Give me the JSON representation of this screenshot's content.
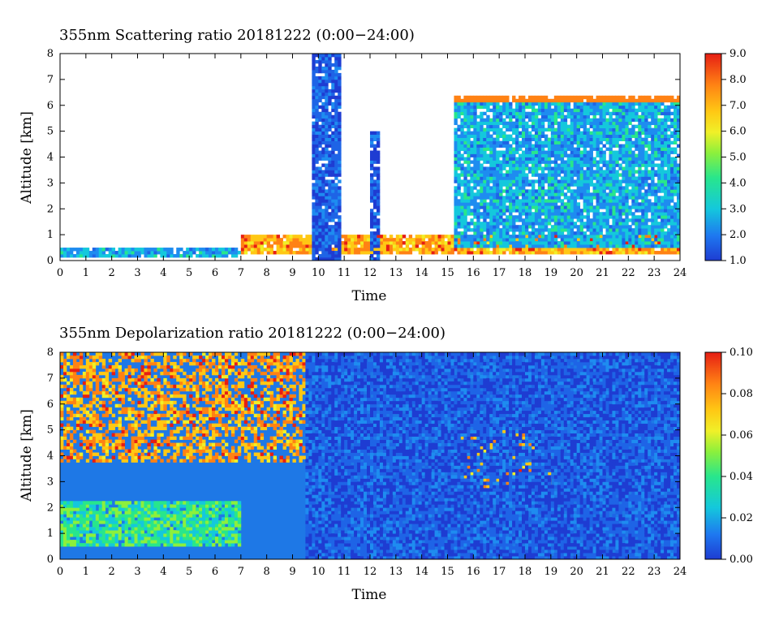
{
  "chart_data": [
    {
      "type": "heatmap",
      "title": "355nm Scattering ratio  20181222 (0:00−24:00)",
      "xlabel": "Time",
      "ylabel": "Altitude [km]",
      "xlim": [
        0,
        24
      ],
      "ylim": [
        0,
        8
      ],
      "x_ticks": [
        "0",
        "1",
        "2",
        "3",
        "4",
        "5",
        "6",
        "7",
        "8",
        "9",
        "10",
        "11",
        "12",
        "13",
        "14",
        "15",
        "16",
        "17",
        "18",
        "19",
        "20",
        "21",
        "22",
        "23",
        "24"
      ],
      "y_ticks": [
        "0",
        "1",
        "2",
        "3",
        "4",
        "5",
        "6",
        "7",
        "8"
      ],
      "colorbar": {
        "min": 1.0,
        "max": 9.0,
        "ticks": [
          "1.0",
          "2.0",
          "3.0",
          "4.0",
          "5.0",
          "6.0",
          "7.0",
          "8.0",
          "9.0"
        ]
      },
      "features": [
        {
          "x": [
            0,
            7
          ],
          "y": [
            0.2,
            0.5
          ],
          "level": "low-mid, boundary layer traces"
        },
        {
          "x": [
            7,
            24
          ],
          "y": [
            0.3,
            0.9
          ],
          "level": "high, dense aerosol layer"
        },
        {
          "x": [
            9.8,
            10.8
          ],
          "y": [
            0,
            8
          ],
          "level": "low, tall column"
        },
        {
          "x": [
            12.0,
            12.3
          ],
          "y": [
            0,
            5
          ],
          "level": "low, tall column"
        },
        {
          "x": [
            15.3,
            24
          ],
          "y": [
            0.5,
            6.3
          ],
          "level": "low-mid cloud mass with high edges"
        }
      ]
    },
    {
      "type": "heatmap",
      "title": "355nm Depolarization ratio  20181222 (0:00−24:00)",
      "xlabel": "Time",
      "ylabel": "Altitude [km]",
      "xlim": [
        0,
        24
      ],
      "ylim": [
        0,
        8
      ],
      "x_ticks": [
        "0",
        "1",
        "2",
        "3",
        "4",
        "5",
        "6",
        "7",
        "8",
        "9",
        "10",
        "11",
        "12",
        "13",
        "14",
        "15",
        "16",
        "17",
        "18",
        "19",
        "20",
        "21",
        "22",
        "23",
        "24"
      ],
      "y_ticks": [
        "0",
        "1",
        "2",
        "3",
        "4",
        "5",
        "6",
        "7",
        "8"
      ],
      "colorbar": {
        "min": 0.0,
        "max": 0.1,
        "ticks": [
          "0.00",
          "0.02",
          "0.04",
          "0.06",
          "0.08",
          "0.10"
        ]
      },
      "features": [
        {
          "x": [
            0,
            9.5
          ],
          "y": [
            3.8,
            8
          ],
          "level": "high noisy region"
        },
        {
          "x": [
            0,
            7
          ],
          "y": [
            0.6,
            2.2
          ],
          "level": "mid, green layer"
        },
        {
          "x": [
            15.5,
            19
          ],
          "y": [
            2.7,
            5
          ],
          "level": "high, orange-red plume"
        },
        {
          "x": [
            9.5,
            24
          ],
          "y": [
            0,
            8
          ],
          "level": "low background"
        }
      ]
    }
  ]
}
